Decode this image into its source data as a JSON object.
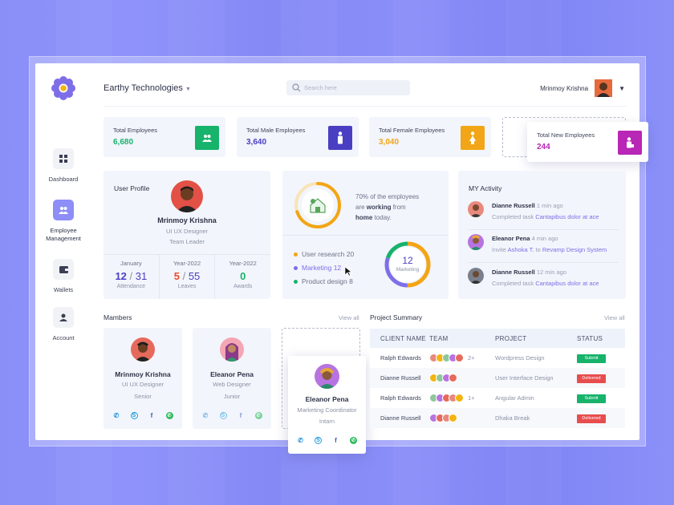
{
  "sidebar": {
    "items": [
      {
        "label": "Dashboard",
        "icon": "grid-icon"
      },
      {
        "label": "Employee Management",
        "icon": "users-icon",
        "active": true
      },
      {
        "label": "Wallets",
        "icon": "wallet-icon"
      },
      {
        "label": "Account",
        "icon": "person-icon"
      }
    ]
  },
  "header": {
    "company": "Earthy Technologies",
    "search_placeholder": "Search here",
    "user_name": "Mrinmoy Krishna"
  },
  "stats": [
    {
      "title": "Total Employees",
      "value": "6,680",
      "color": "#17b36b",
      "icon": "users-icon"
    },
    {
      "title": "Total Male Employees",
      "value": "3,640",
      "color": "#4a3fc3",
      "icon": "male-icon"
    },
    {
      "title": "Total Female Employees",
      "value": "3,040",
      "color": "#f2a516",
      "icon": "female-icon"
    },
    {
      "title": "Total New Employees",
      "value": "244",
      "color": "#b827b5",
      "icon": "new-user-icon"
    }
  ],
  "profile": {
    "title": "User Profile",
    "name": "Mrinmoy Krishna",
    "role": "UI UX Designer",
    "position": "Team Leader",
    "stats": [
      {
        "label": "January",
        "num": "12",
        "den": "31",
        "sub": "Attendance",
        "color": "#4a3fc3"
      },
      {
        "label": "Year-2022",
        "num": "5",
        "den": "55",
        "sub": "Leaves",
        "color": "#e84d2e"
      },
      {
        "label": "Year-2022",
        "num": "0",
        "sub": "Awards",
        "color": "#17b36b"
      }
    ]
  },
  "working": {
    "line1": "70% of the employees",
    "line2a": "are ",
    "line2b": "working",
    "line2c": " from",
    "line3a": "home",
    "line3b": " today.",
    "percent": 70
  },
  "departments": {
    "items": [
      {
        "label": "User research",
        "count": "20",
        "color": "#f2a516"
      },
      {
        "label": "Marketing",
        "count": "12",
        "color": "#7d6ee8"
      },
      {
        "label": "Product design",
        "count": "8",
        "color": "#17b36b"
      }
    ],
    "center_value": "12",
    "center_label": "Marketing"
  },
  "activity": {
    "title": "MY Activity",
    "items": [
      {
        "name": "Dianne Russell",
        "time": "1 min ago",
        "desc": "Completed task ",
        "link": "Cantapibus dolor at ace"
      },
      {
        "name": "Eleanor Pena",
        "time": "4 min ago",
        "desc": "Invite ",
        "link": "Ashoka T.",
        "desc2": " to ",
        "link2": "Revamp Design System"
      },
      {
        "name": "Dianne Russell",
        "time": "12 min ago",
        "desc": "Completed task ",
        "link": "Cantapibus dolor at ace"
      }
    ]
  },
  "members": {
    "title": "Mambers",
    "view_all": "View all",
    "cards": [
      {
        "name": "Mrinmoy Krishna",
        "role": "UI UX Designer",
        "level": "Senior"
      },
      {
        "name": "Eleanor Pena",
        "role": "Web Designer",
        "level": "Junior"
      },
      {
        "name": "Eleanor Pena",
        "role": "Marketing Coordinator",
        "level": "Intarn"
      }
    ]
  },
  "projects": {
    "title": "Project Summary",
    "view_all": "View all",
    "headers": [
      "CLIENT NAME",
      "TEAM",
      "PROJECT",
      "STATUS"
    ],
    "rows": [
      {
        "client": "Ralph Edwards",
        "extra": "2+",
        "project": "Wordpress Design",
        "status": "Submit",
        "color": "#17b36b"
      },
      {
        "client": "Dianne Russell",
        "extra": "",
        "project": "User Interface Design",
        "status": "Delivered",
        "color": "#e84d4d"
      },
      {
        "client": "Ralph Edwards",
        "extra": "1+",
        "project": "Angular Admin",
        "status": "Submit",
        "color": "#17b36b"
      },
      {
        "client": "Dianne Russell",
        "extra": "",
        "project": "Dhaka Break",
        "status": "Delivered",
        "color": "#e84d4d"
      }
    ]
  }
}
